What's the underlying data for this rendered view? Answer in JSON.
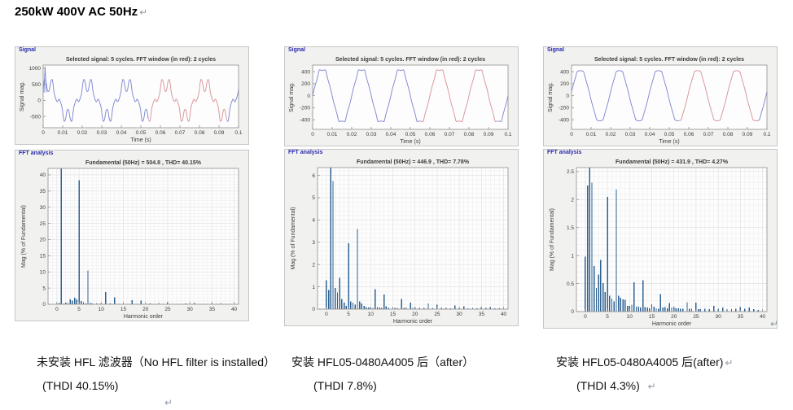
{
  "page": {
    "title": "250kW 400V AC 50Hz",
    "return_mark": "↵"
  },
  "colors": {
    "bar": "#2d6192",
    "line_blue": "#7a82cf",
    "line_red": "#d68f94",
    "panel_label": "#2a2ab0",
    "axis": "#8f8f8f",
    "grid_minor": "#ececec",
    "grid_major": "#dddddd",
    "plot_bg": "#fdfdfd",
    "text": "#3c3c3c"
  },
  "captions": [
    {
      "line1": "未安装 HFL 滤波器（No HFL filter is installed）",
      "line2": "(THDI 40.15%)"
    },
    {
      "line1": "安装 HFL05-0480A4005 后（after）",
      "line2": "(THDI 7.8%)"
    },
    {
      "line1": "安装 HFL05-0480A4005 后(after)",
      "line2": "(THDI 4.3%)"
    }
  ],
  "chart_data": [
    {
      "type": "line",
      "window_label": "Signal",
      "title": "Selected signal: 5 cycles. FFT window (in red): 2 cycles",
      "xlabel": "Time (s)",
      "ylabel": "Signal mag.",
      "xlim": [
        0,
        0.1
      ],
      "ylim": [
        -850,
        1100
      ],
      "xticks": [
        0,
        0.01,
        0.02,
        0.03,
        0.04,
        0.05,
        0.06,
        0.07,
        0.08,
        0.09,
        0.1
      ],
      "yticks": [
        -500,
        0,
        500,
        1000
      ],
      "grid": null,
      "red_window": [
        0.054,
        0.094
      ],
      "synth": {
        "fundamental_peak": 504.8,
        "freq_hz": 50,
        "phase_deg": 42,
        "harmonics": [
          [
            5,
            38.3,
            180
          ],
          [
            7,
            10.4,
            0
          ],
          [
            11,
            3.8,
            180
          ],
          [
            13,
            2.1,
            180
          ],
          [
            17,
            1.2,
            0
          ],
          [
            19,
            1.1,
            180
          ]
        ]
      },
      "extra_line": [
        [
          0.0004,
          250
        ],
        [
          0.001,
          1050
        ],
        [
          0.0016,
          250
        ]
      ]
    },
    {
      "type": "bar",
      "window_label": "FFT analysis",
      "title": "Fundamental (50Hz) = 504.8 , THD= 40.15%",
      "xlabel": "Harmonic order",
      "ylabel": "Mag (% of Fundamental)",
      "xlim": [
        -2,
        41
      ],
      "ylim": [
        0,
        42
      ],
      "xticks": [
        0,
        5,
        10,
        15,
        20,
        25,
        30,
        35,
        40
      ],
      "yticks": [
        0,
        5,
        10,
        15,
        20,
        25,
        30,
        35,
        40
      ],
      "grid": {
        "x": 1,
        "y": 1
      },
      "bars": [
        [
          0,
          0.3
        ],
        [
          0.5,
          0.4
        ],
        [
          1,
          100
        ],
        [
          1.5,
          0.3
        ],
        [
          2,
          0.5
        ],
        [
          2.5,
          0.4
        ],
        [
          3,
          1.5
        ],
        [
          3.5,
          1.1
        ],
        [
          4,
          2.0
        ],
        [
          4.5,
          1.5
        ],
        [
          5,
          38.3
        ],
        [
          5.5,
          1.0
        ],
        [
          6,
          0.6
        ],
        [
          6.5,
          0.3
        ],
        [
          7,
          10.4
        ],
        [
          7.5,
          0.4
        ],
        [
          8,
          0.25
        ],
        [
          9,
          0.3
        ],
        [
          10,
          0.2
        ],
        [
          11,
          3.8
        ],
        [
          12,
          0.2
        ],
        [
          13,
          2.1
        ],
        [
          14,
          0.15
        ],
        [
          15,
          0.2
        ],
        [
          16,
          0.1
        ],
        [
          17,
          1.2
        ],
        [
          18,
          0.1
        ],
        [
          19,
          1.1
        ],
        [
          20,
          0.15
        ],
        [
          21,
          0.2
        ],
        [
          22,
          0.1
        ],
        [
          23,
          0.4
        ],
        [
          24,
          0.1
        ],
        [
          25,
          0.6
        ],
        [
          26,
          0.1
        ],
        [
          27,
          0.15
        ],
        [
          28,
          0.1
        ],
        [
          29,
          0.3
        ],
        [
          30,
          0.1
        ],
        [
          31,
          0.4
        ],
        [
          32,
          0.1
        ],
        [
          33,
          0.1
        ],
        [
          34,
          0.1
        ],
        [
          35,
          0.2
        ],
        [
          36,
          0.1
        ],
        [
          37,
          0.3
        ],
        [
          38,
          0.08
        ],
        [
          39,
          0.1
        ]
      ]
    },
    {
      "type": "line",
      "window_label": "Signal",
      "title": "Selected signal: 5 cycles. FFT window (in red): 2 cycles",
      "xlabel": "Time (s)",
      "ylabel": "Signal mag.",
      "xlim": [
        0,
        0.1
      ],
      "ylim": [
        -560,
        510
      ],
      "xticks": [
        0,
        0.01,
        0.02,
        0.03,
        0.04,
        0.05,
        0.06,
        0.07,
        0.08,
        0.09,
        0.1
      ],
      "yticks": [
        -400,
        -200,
        0,
        200,
        400
      ],
      "grid": null,
      "red_window": [
        0.055,
        0.095
      ],
      "synth": {
        "fundamental_peak": 446.9,
        "freq_hz": 50,
        "phase_deg": 0,
        "harmonics": [
          [
            5,
            2.95,
            180
          ],
          [
            7,
            3.6,
            0
          ],
          [
            11,
            0.9,
            180
          ],
          [
            13,
            0.65,
            0
          ],
          [
            17,
            0.45,
            180
          ],
          [
            19,
            0.3,
            0
          ]
        ]
      },
      "extra_line": null
    },
    {
      "type": "bar",
      "window_label": "FFT analysis",
      "title": "Fundamental (50Hz) = 446.9 , THD= 7.78%",
      "xlabel": "Harmonic order",
      "ylabel": "Mag (% of Fundamental)",
      "xlim": [
        -2,
        41
      ],
      "ylim": [
        0,
        6.35
      ],
      "xticks": [
        0,
        5,
        10,
        15,
        20,
        25,
        30,
        35,
        40
      ],
      "yticks": [
        0,
        1,
        2,
        3,
        4,
        5,
        6
      ],
      "grid": {
        "x": 1,
        "y": 0.2
      },
      "bars": [
        [
          0,
          1.3
        ],
        [
          0.5,
          0.85
        ],
        [
          1,
          100
        ],
        [
          1.5,
          5.75
        ],
        [
          2,
          0.95
        ],
        [
          2.5,
          0.75
        ],
        [
          3,
          1.4
        ],
        [
          3.5,
          0.45
        ],
        [
          4,
          0.3
        ],
        [
          4.5,
          0.15
        ],
        [
          5,
          2.95
        ],
        [
          5.5,
          0.35
        ],
        [
          6,
          0.3
        ],
        [
          6.5,
          0.2
        ],
        [
          7,
          3.6
        ],
        [
          7.5,
          0.35
        ],
        [
          8,
          0.25
        ],
        [
          8.5,
          0.15
        ],
        [
          9,
          0.1
        ],
        [
          9.5,
          0.08
        ],
        [
          10,
          0.08
        ],
        [
          10.5,
          0.06
        ],
        [
          11,
          0.9
        ],
        [
          11.5,
          0.1
        ],
        [
          12,
          0.08
        ],
        [
          12.5,
          0.06
        ],
        [
          13,
          0.65
        ],
        [
          13.5,
          0.12
        ],
        [
          14,
          0.06
        ],
        [
          15,
          0.08
        ],
        [
          15.5,
          0.06
        ],
        [
          16,
          0.06
        ],
        [
          17,
          0.45
        ],
        [
          17.5,
          0.06
        ],
        [
          18,
          0.06
        ],
        [
          19,
          0.3
        ],
        [
          19.5,
          0.06
        ],
        [
          20,
          0.08
        ],
        [
          21,
          0.06
        ],
        [
          22,
          0.05
        ],
        [
          23,
          0.25
        ],
        [
          24,
          0.06
        ],
        [
          25,
          0.2
        ],
        [
          26,
          0.05
        ],
        [
          27,
          0.05
        ],
        [
          28,
          0.04
        ],
        [
          29,
          0.17
        ],
        [
          30,
          0.05
        ],
        [
          31,
          0.13
        ],
        [
          32,
          0.04
        ],
        [
          33,
          0.05
        ],
        [
          34,
          0.04
        ],
        [
          35,
          0.1
        ],
        [
          36,
          0.06
        ],
        [
          37,
          0.1
        ],
        [
          38,
          0.04
        ],
        [
          39,
          0.04
        ]
      ]
    },
    {
      "type": "line",
      "window_label": "Signal",
      "title": "Selected signal: 5 cycles. FFT window (in red): 2 cycles",
      "xlabel": "Time (s)",
      "ylabel": "Signal mag.",
      "xlim": [
        0,
        0.1
      ],
      "ylim": [
        -560,
        510
      ],
      "xticks": [
        0,
        0.01,
        0.02,
        0.03,
        0.04,
        0.05,
        0.06,
        0.07,
        0.08,
        0.09,
        0.1
      ],
      "yticks": [
        -400,
        -200,
        0,
        200,
        400
      ],
      "grid": null,
      "red_window": [
        0.055,
        0.095
      ],
      "synth": {
        "fundamental_peak": 431.9,
        "freq_hz": 50,
        "phase_deg": 9,
        "harmonics": [
          [
            5,
            2.05,
            180
          ],
          [
            7,
            2.18,
            0
          ],
          [
            11,
            0.52,
            180
          ],
          [
            13,
            0.56,
            0
          ],
          [
            17,
            0.31,
            180
          ],
          [
            19,
            0.15,
            0
          ]
        ]
      },
      "extra_line": null
    },
    {
      "type": "bar",
      "window_label": "FFT analysis",
      "title": "Fundamental (50Hz) = 431.9 , THD= 4.27%",
      "xlabel": "Harmonic order",
      "ylabel": "Mag (% of Fundamental)",
      "xlim": [
        -2,
        41
      ],
      "ylim": [
        0,
        2.57
      ],
      "xticks": [
        0,
        5,
        10,
        15,
        20,
        25,
        30,
        35,
        40
      ],
      "yticks": [
        0,
        0.5,
        1,
        1.5,
        2,
        2.5
      ],
      "grid": {
        "x": 1,
        "y": 0.1
      },
      "bars": [
        [
          0,
          0.98
        ],
        [
          0.5,
          2.25
        ],
        [
          1,
          100
        ],
        [
          1.5,
          2.3
        ],
        [
          2,
          0.81
        ],
        [
          2.5,
          0.42
        ],
        [
          3,
          0.66
        ],
        [
          3.5,
          0.92
        ],
        [
          4,
          0.51
        ],
        [
          4.5,
          0.35
        ],
        [
          5,
          2.05
        ],
        [
          5.5,
          0.28
        ],
        [
          6,
          0.23
        ],
        [
          6.5,
          0.18
        ],
        [
          7,
          2.18
        ],
        [
          7.5,
          0.28
        ],
        [
          8,
          0.25
        ],
        [
          8.5,
          0.22
        ],
        [
          9,
          0.21
        ],
        [
          9.5,
          0.1
        ],
        [
          10,
          0.1
        ],
        [
          10.5,
          0.12
        ],
        [
          11,
          0.52
        ],
        [
          11.5,
          0.09
        ],
        [
          12,
          0.09
        ],
        [
          12.5,
          0.07
        ],
        [
          13,
          0.56
        ],
        [
          13.5,
          0.08
        ],
        [
          14,
          0.07
        ],
        [
          14.5,
          0.06
        ],
        [
          15,
          0.13
        ],
        [
          15.5,
          0.09
        ],
        [
          16,
          0.06
        ],
        [
          16.5,
          0.05
        ],
        [
          17,
          0.31
        ],
        [
          17.5,
          0.07
        ],
        [
          18,
          0.08
        ],
        [
          18.5,
          0.06
        ],
        [
          19,
          0.15
        ],
        [
          19.5,
          0.07
        ],
        [
          20,
          0.08
        ],
        [
          20.5,
          0.06
        ],
        [
          21,
          0.06
        ],
        [
          21.5,
          0.05
        ],
        [
          22,
          0.05
        ],
        [
          23,
          0.17
        ],
        [
          23.5,
          0.05
        ],
        [
          24,
          0.05
        ],
        [
          25,
          0.16
        ],
        [
          25.5,
          0.04
        ],
        [
          26,
          0.04
        ],
        [
          27,
          0.05
        ],
        [
          28,
          0.04
        ],
        [
          29,
          0.1
        ],
        [
          30,
          0.05
        ],
        [
          31,
          0.07
        ],
        [
          32,
          0.04
        ],
        [
          33,
          0.04
        ],
        [
          34,
          0.05
        ],
        [
          35,
          0.08
        ],
        [
          36,
          0.05
        ],
        [
          37,
          0.07
        ],
        [
          38,
          0.04
        ],
        [
          39,
          0.03
        ]
      ]
    }
  ]
}
